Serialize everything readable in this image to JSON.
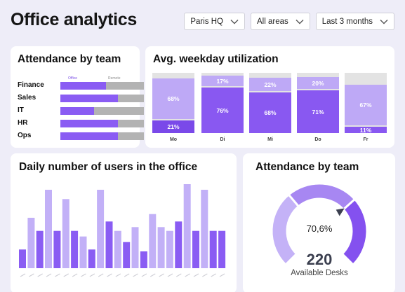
{
  "header": {
    "title": "Office analytics"
  },
  "filters": [
    {
      "label": "Paris HQ",
      "icon": "chevron-down-icon"
    },
    {
      "label": "All areas",
      "icon": "chevron-down-icon"
    },
    {
      "label": "Last 3 months",
      "icon": "chevron-down-icon"
    }
  ],
  "colors": {
    "accent": "#8a5cf3",
    "accent_light": "#bea9f6",
    "remote": "#b3b3b3",
    "background": "#eeedf8"
  },
  "team_card": {
    "title": "Attendance by team",
    "legend_office": "Office",
    "legend_remote": "Remote",
    "teams": [
      {
        "label": "Finance",
        "office_share": 0.55
      },
      {
        "label": "Sales",
        "office_share": 0.69
      },
      {
        "label": "IT",
        "office_share": 0.4
      },
      {
        "label": "HR",
        "office_share": 0.69
      },
      {
        "label": "Ops",
        "office_share": 0.69
      }
    ]
  },
  "util_card": {
    "title": "Avg. weekday utilization",
    "days": [
      {
        "day": "Mo",
        "light_label": "68%",
        "light": 0.68,
        "dark_label": "21%",
        "dark": 0.21
      },
      {
        "day": "Di",
        "light_label": "17%",
        "light": 0.17,
        "dark_label": "76%",
        "dark": 0.76
      },
      {
        "day": "Mi",
        "light_label": "22%",
        "light": 0.22,
        "dark_label": "68%",
        "dark": 0.68
      },
      {
        "day": "Do",
        "light_label": "20%",
        "light": 0.2,
        "dark_label": "71%",
        "dark": 0.71
      },
      {
        "day": "Fr",
        "light_label": "67%",
        "light": 0.67,
        "dark_label": "11%",
        "dark": 0.11
      }
    ]
  },
  "daily_card": {
    "title": "Daily number of users in the office",
    "chart_data": {
      "type": "bar",
      "values": [
        10,
        27,
        20,
        42,
        20,
        37,
        20,
        17,
        10,
        42,
        25,
        20,
        14,
        22,
        9,
        29,
        22,
        20,
        25,
        45,
        20,
        42,
        20,
        20
      ]
    },
    "shade": [
      0,
      1,
      0,
      1,
      0,
      1,
      0,
      1,
      0,
      1,
      0,
      1,
      0,
      1,
      0,
      1,
      1,
      1,
      0,
      1,
      0,
      1,
      0,
      0
    ]
  },
  "gauge_card": {
    "title": "Attendance by team",
    "percent_label": "70,6%",
    "percent": 70.6,
    "count": "220",
    "count_label": "Available Desks"
  }
}
